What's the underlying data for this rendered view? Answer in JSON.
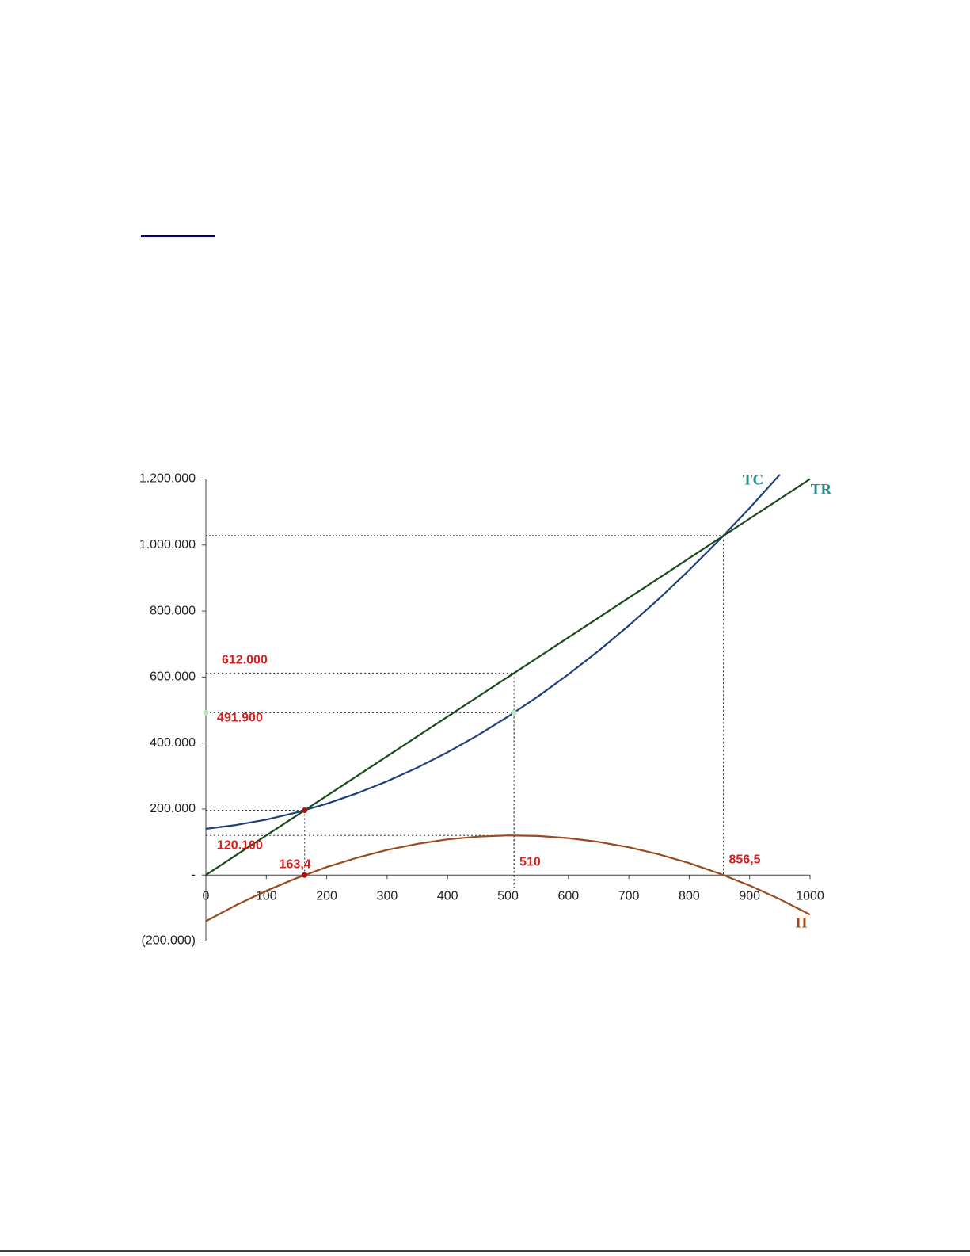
{
  "chart_data": {
    "type": "line",
    "x": [
      0,
      50,
      100,
      150,
      200,
      250,
      300,
      350,
      400,
      450,
      500,
      550,
      600,
      650,
      700,
      750,
      800,
      850,
      900,
      950,
      1000
    ],
    "series": [
      {
        "name": "TC",
        "color": "#1f3f7a",
        "label_color": "#2a8a8a",
        "values": [
          140000,
          151500,
          168000,
          189500,
          216000,
          247500,
          284000,
          325500,
          372000,
          423500,
          480000,
          541500,
          608000,
          679500,
          756000,
          837500,
          924000,
          1015500,
          1112000,
          1213500,
          null
        ]
      },
      {
        "name": "TR",
        "color": "#1a4a1a",
        "label_color": "#2a8a8a",
        "values": [
          0,
          60000,
          120000,
          180000,
          240000,
          300000,
          360000,
          420000,
          480000,
          540000,
          600000,
          660000,
          720000,
          780000,
          840000,
          900000,
          960000,
          1020000,
          1080000,
          1140000,
          1200000
        ]
      },
      {
        "name": "Π",
        "color": "#9a4a1e",
        "label_color": "#9a4a1e",
        "values": [
          -140000,
          -91500,
          -48000,
          -9500,
          24000,
          52500,
          76000,
          94500,
          108000,
          116500,
          120000,
          118500,
          112000,
          100500,
          84000,
          62500,
          36000,
          4500,
          -32000,
          -73500,
          -120000
        ]
      }
    ],
    "xlim": [
      0,
      1000
    ],
    "xticks": [
      0,
      100,
      200,
      300,
      400,
      500,
      600,
      700,
      800,
      900,
      1000
    ],
    "ylim": [
      -200000,
      1200000
    ],
    "yticks": [
      {
        "value": -200000,
        "label": "(200.000)"
      },
      {
        "value": 0,
        "label": "-"
      },
      {
        "value": 200000,
        "label": "200.000"
      },
      {
        "value": 400000,
        "label": "400.000"
      },
      {
        "value": 600000,
        "label": "600.000"
      },
      {
        "value": 800000,
        "label": "800.000"
      },
      {
        "value": 1000000,
        "label": "1.000.000"
      },
      {
        "value": 1200000,
        "label": "1.200.000"
      }
    ],
    "guides": [
      {
        "x": 856.5,
        "y": 1027800
      },
      {
        "x": 510,
        "y": 612000
      },
      {
        "x": 510,
        "y": 491900
      },
      {
        "x": 163.4,
        "y": 196080
      },
      {
        "x": 510,
        "y": 120100
      }
    ],
    "points": [
      {
        "x": 163.4,
        "y": 196080,
        "color": "#b01010"
      },
      {
        "x": 163.4,
        "y": 0,
        "color": "#b01010"
      },
      {
        "x": 0,
        "y": 491900,
        "color": "#b8e6b8"
      },
      {
        "x": 510,
        "y": 491900,
        "color": "#b8e6b8"
      }
    ],
    "annotations": [
      {
        "axis": "y",
        "value": 612000,
        "label": "612.000"
      },
      {
        "axis": "y",
        "value": 491900,
        "label": "491.900"
      },
      {
        "axis": "y",
        "value": 120100,
        "label": "120.100"
      },
      {
        "axis": "x",
        "value": 163.4,
        "label": "163,4"
      },
      {
        "axis": "x",
        "value": 510,
        "label": "510"
      },
      {
        "axis": "x",
        "value": 856.5,
        "label": "856,5"
      }
    ],
    "annotation_color": "#d42020"
  }
}
